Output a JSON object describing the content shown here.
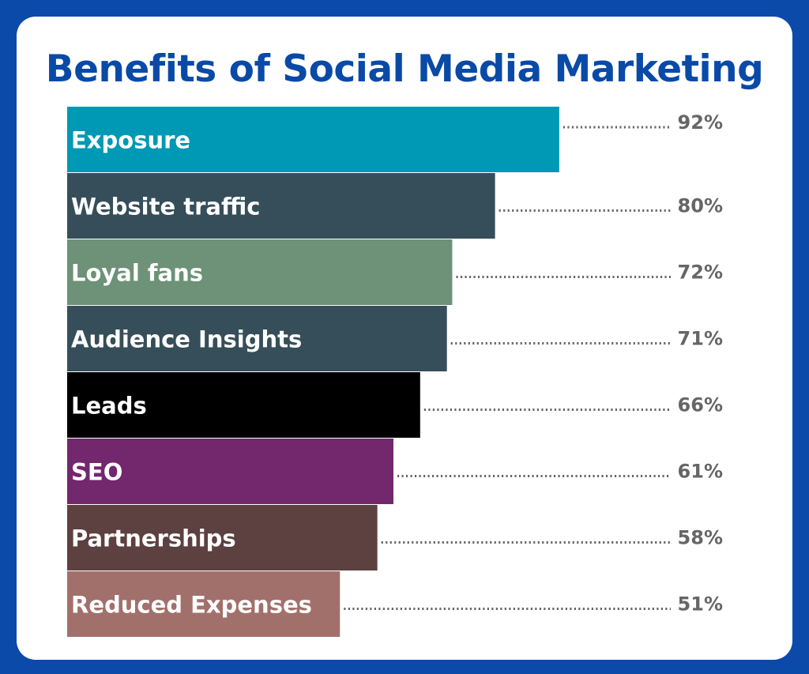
{
  "title": "Benefits of Social Media Marketing",
  "colors": {
    "frame": "#0b4aa8",
    "card": "#ffffff",
    "title": "#0a4aa7",
    "value_text": "#666666",
    "dots": "#666666",
    "bar_label": "#ffffff"
  },
  "chart_data": {
    "type": "bar",
    "orientation": "horizontal",
    "title": "Benefits of Social Media Marketing",
    "xlabel": "",
    "ylabel": "",
    "xlim": [
      0,
      100
    ],
    "grid": false,
    "legend": "none",
    "unit": "%",
    "categories": [
      "Exposure",
      "Website traffic",
      "Loyal fans",
      "Audience Insights",
      "Leads",
      "SEO",
      "Partnerships",
      "Reduced Expenses"
    ],
    "values": [
      92,
      80,
      72,
      71,
      66,
      61,
      58,
      51
    ],
    "value_labels": [
      "92%",
      "80%",
      "72%",
      "71%",
      "66%",
      "61%",
      "58%",
      "51%"
    ],
    "bar_colors": [
      "#0099b5",
      "#364e59",
      "#6d9277",
      "#364e59",
      "#000000",
      "#73276d",
      "#5c4140",
      "#a2706b"
    ]
  }
}
